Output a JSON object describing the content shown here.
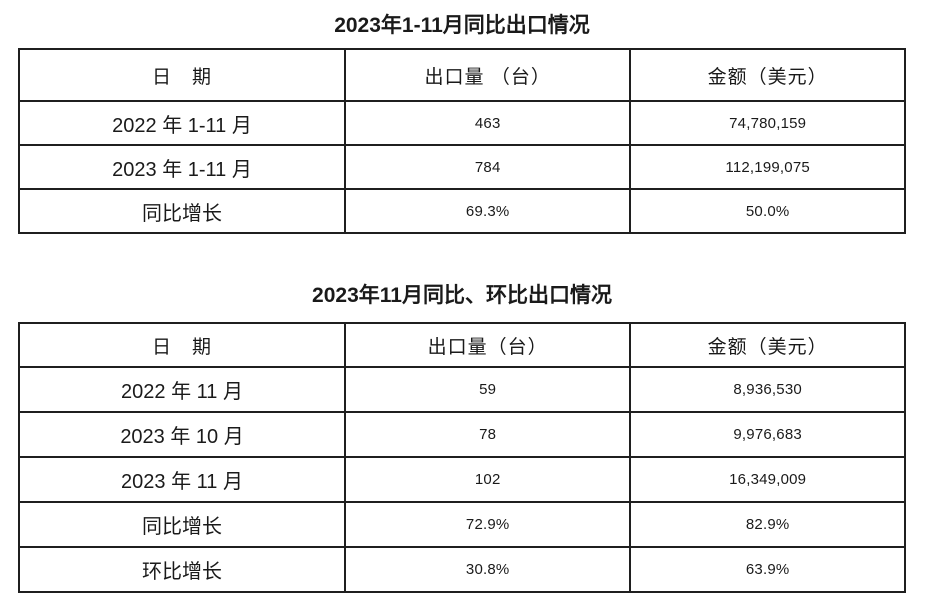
{
  "page": {
    "background": "#ffffff",
    "text_color": "#1a1a1a",
    "border_color": "#1f1f1f"
  },
  "tables": [
    {
      "title": "2023年1-11月同比出口情况",
      "headers": [
        "日　期",
        "出口量 （台）",
        "金额（美元）"
      ],
      "rows": [
        [
          "2022 年 1-11 月",
          "463",
          "74,780,159"
        ],
        [
          "2023 年 1-11 月",
          "784",
          "112,199,075"
        ],
        [
          "同比增长",
          "69.3%",
          "50.0%"
        ]
      ]
    },
    {
      "title": "2023年11月同比、环比出口情况",
      "headers": [
        "日　期",
        "出口量（台）",
        "金额（美元）"
      ],
      "rows": [
        [
          "2022 年 11 月",
          "59",
          "8,936,530"
        ],
        [
          "2023 年 10 月",
          "78",
          "9,976,683"
        ],
        [
          "2023 年 11 月",
          "102",
          "16,349,009"
        ],
        [
          "同比增长",
          "72.9%",
          "82.9%"
        ],
        [
          "环比增长",
          "30.8%",
          "63.9%"
        ]
      ]
    }
  ]
}
